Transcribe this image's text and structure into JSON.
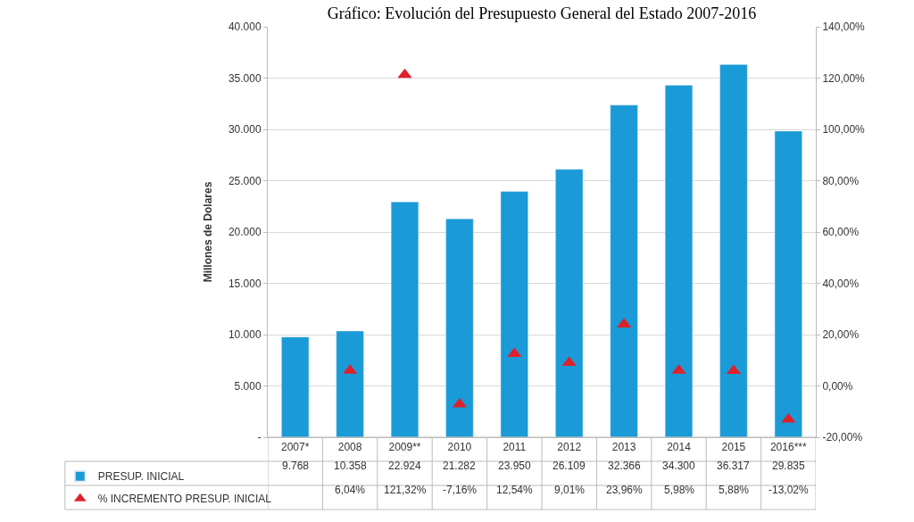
{
  "chart_data": {
    "type": "bar",
    "title": "Gráfico: Evolución del Presupuesto General del Estado 2007-2016",
    "ylabel": "Millones de Dolares",
    "categories": [
      "2007*",
      "2008",
      "2009**",
      "2010",
      "2011",
      "2012",
      "2013",
      "2014",
      "2015",
      "2016***"
    ],
    "series": [
      {
        "name": "PRESUP. INICIAL",
        "color": "#1a9ad6",
        "values": [
          9768,
          10358,
          22924,
          21282,
          23950,
          26109,
          32366,
          34300,
          36317,
          29835
        ],
        "value_labels": [
          "9.768",
          "10.358",
          "22.924",
          "21.282",
          "23.950",
          "26.109",
          "32.366",
          "34.300",
          "36.317",
          "29.835"
        ]
      },
      {
        "name": "% INCREMENTO PRESUP. INICIAL",
        "type": "scatter",
        "axis": "y2",
        "marker": "triangle",
        "color": "#e0202a",
        "values": [
          null,
          6.04,
          121.32,
          -7.16,
          12.54,
          9.01,
          23.96,
          5.98,
          5.88,
          -13.02
        ],
        "value_labels": [
          null,
          "6,04%",
          "121,32%",
          "-7,16%",
          "12,54%",
          "9,01%",
          "23,96%",
          "5,98%",
          "5,88%",
          "-13,02%"
        ]
      }
    ],
    "ylim": [
      0,
      40000
    ],
    "yticks": [
      {
        "value": 0,
        "label": "-"
      },
      {
        "value": 5000,
        "label": "5.000"
      },
      {
        "value": 10000,
        "label": "10.000"
      },
      {
        "value": 15000,
        "label": "15.000"
      },
      {
        "value": 20000,
        "label": "20.000"
      },
      {
        "value": 25000,
        "label": "25.000"
      },
      {
        "value": 30000,
        "label": "30.000"
      },
      {
        "value": 35000,
        "label": "35.000"
      },
      {
        "value": 40000,
        "label": "40.000"
      }
    ],
    "y2lim": [
      -20,
      140
    ],
    "y2ticks": [
      {
        "value": -20,
        "label": "-20,00%"
      },
      {
        "value": 0,
        "label": "0,00%"
      },
      {
        "value": 20,
        "label": "20,00%"
      },
      {
        "value": 40,
        "label": "40,00%"
      },
      {
        "value": 60,
        "label": "60,00%"
      },
      {
        "value": 80,
        "label": "80,00%"
      },
      {
        "value": 100,
        "label": "100,00%"
      },
      {
        "value": 120,
        "label": "120,00%"
      },
      {
        "value": 140,
        "label": "140,00%"
      }
    ],
    "grid": "y",
    "legend": "bottom"
  }
}
